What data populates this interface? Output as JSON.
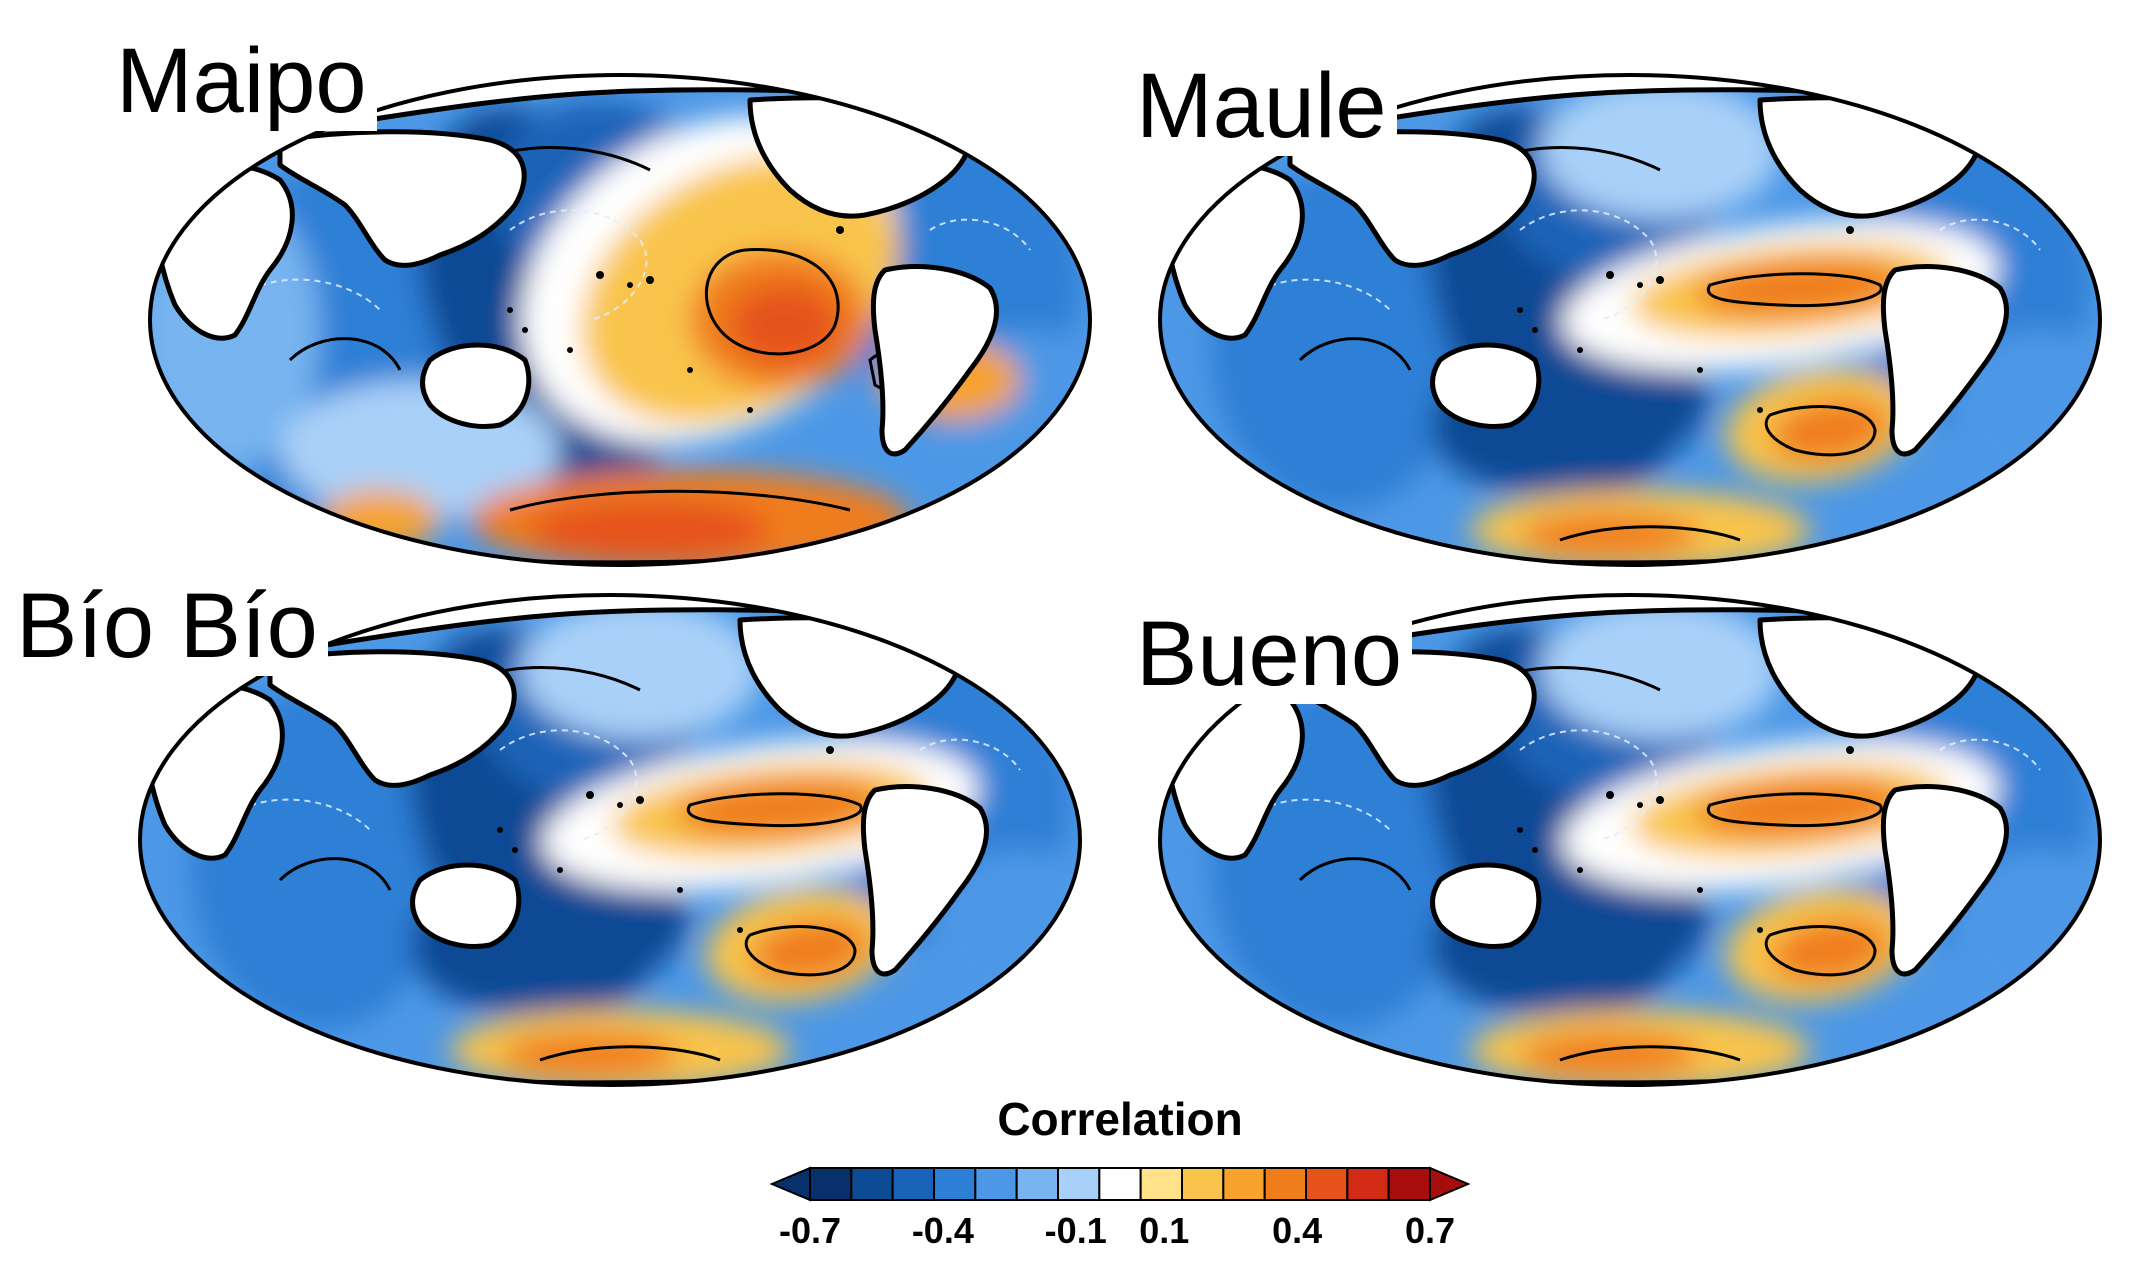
{
  "panels": [
    {
      "label": "Maipo",
      "variant": "maipo"
    },
    {
      "label": "Maule",
      "variant": "enso"
    },
    {
      "label": "Bío Bío",
      "variant": "enso"
    },
    {
      "label": "Bueno",
      "variant": "enso"
    }
  ],
  "colorbar": {
    "title": "Correlation",
    "levels": [
      -0.7,
      -0.6,
      -0.5,
      -0.4,
      -0.3,
      -0.2,
      -0.1,
      0,
      0.1,
      0.2,
      0.3,
      0.4,
      0.5,
      0.6,
      0.7
    ],
    "tick_labels": [
      "-0.7",
      "-0.4",
      "-0.1",
      "0.1",
      "0.4",
      "0.7"
    ],
    "tick_values": [
      -0.7,
      -0.4,
      -0.1,
      0.1,
      0.4,
      0.7
    ],
    "colors": [
      "#08306b",
      "#0d4a94",
      "#1a63b8",
      "#2d7fd6",
      "#4d98e6",
      "#77b4f0",
      "#a9d0f8",
      "#ffffff",
      "#ffe28a",
      "#f9c44c",
      "#f6a22d",
      "#f07d1c",
      "#e5531a",
      "#d22a14",
      "#a80d0d"
    ]
  }
}
